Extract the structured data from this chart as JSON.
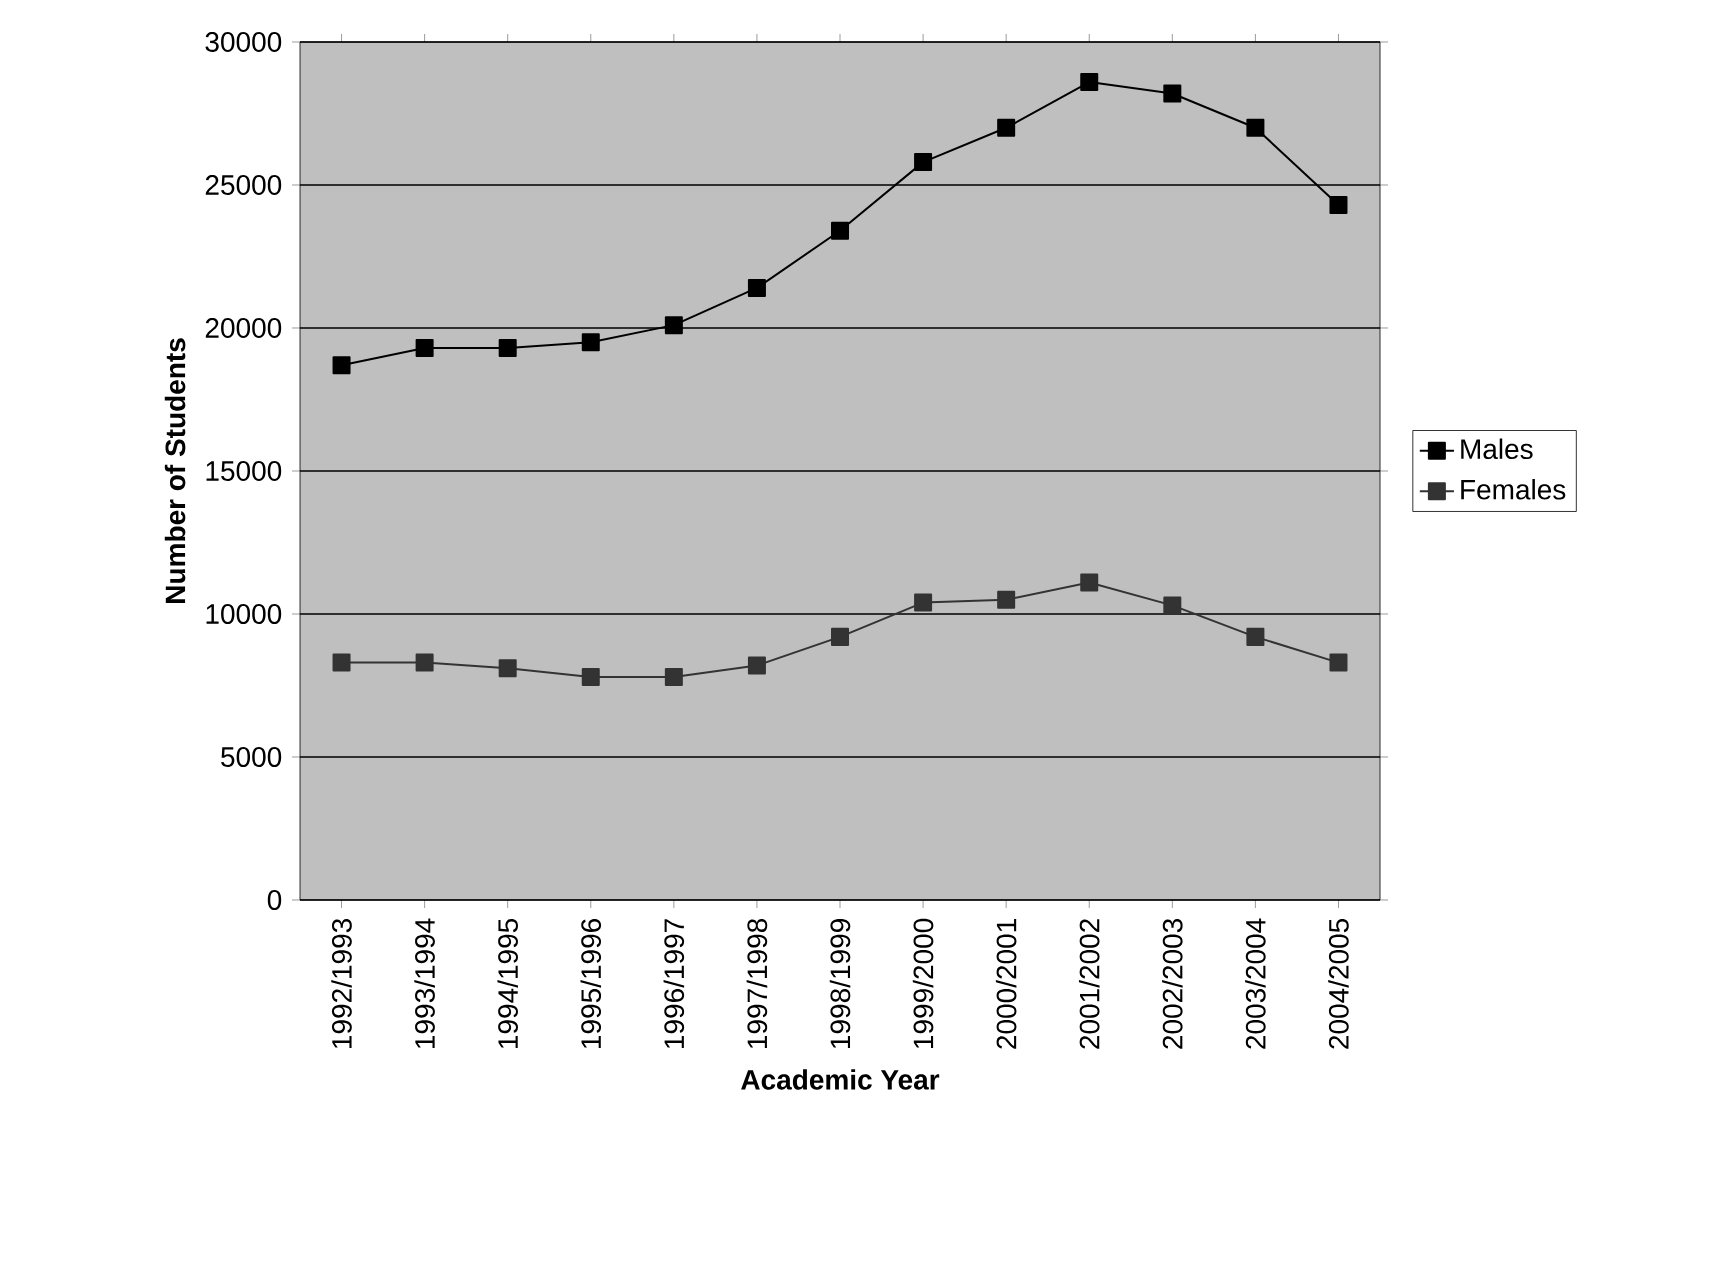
{
  "chart_data": {
    "type": "line",
    "xlabel": "Academic Year",
    "ylabel": "Number of Students",
    "categories": [
      "1992/1993",
      "1993/1994",
      "1994/1995",
      "1995/1996",
      "1996/1997",
      "1997/1998",
      "1998/1999",
      "1999/2000",
      "2000/2001",
      "2001/2002",
      "2002/2003",
      "2003/2004",
      "2004/2005"
    ],
    "series": [
      {
        "name": "Males",
        "color": "#000000",
        "values": [
          18700,
          19300,
          19300,
          19500,
          20100,
          21400,
          23400,
          25800,
          27000,
          28600,
          28200,
          27000,
          24300
        ]
      },
      {
        "name": "Females",
        "color": "#333333",
        "values": [
          8300,
          8300,
          8100,
          7800,
          7800,
          8200,
          9200,
          10400,
          10500,
          11100,
          10300,
          9200,
          8300
        ]
      }
    ],
    "ylim": [
      0,
      30000
    ],
    "yticks": [
      0,
      5000,
      10000,
      15000,
      20000,
      25000,
      30000
    ],
    "grid": "y",
    "legend": "right",
    "marker": "square",
    "line_style": "solid"
  }
}
